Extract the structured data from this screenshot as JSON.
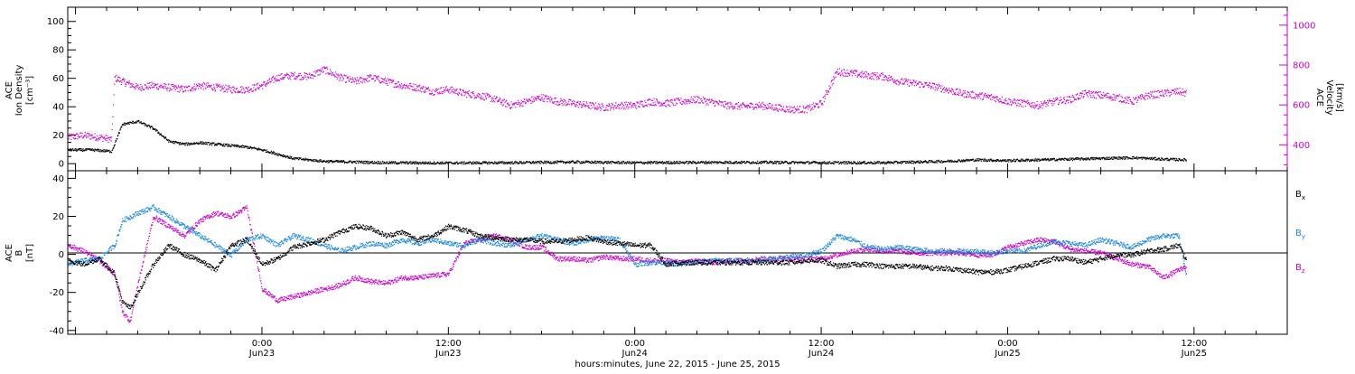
{
  "colors": {
    "black": "#000000",
    "magenta": "#cc00cc",
    "blue": "#1a88e0"
  },
  "xaxis": {
    "ticks": [
      {
        "time": "0:00",
        "date": "Jun23",
        "hours": 24
      },
      {
        "time": "12:00",
        "date": "Jun23",
        "hours": 36
      },
      {
        "time": "0:00",
        "date": "Jun24",
        "hours": 48
      },
      {
        "time": "12:00",
        "date": "Jun24",
        "hours": 60
      },
      {
        "time": "0:00",
        "date": "Jun25",
        "hours": 72
      },
      {
        "time": "12:00",
        "date": "Jun25",
        "hours": 84
      }
    ],
    "label": "hours:minutes, June 22, 2015 - June 25, 2015",
    "range_hours": [
      11.5,
      90.0
    ],
    "unit": "hours from 2015-06-22 00:00"
  },
  "panels": {
    "top": {
      "ylabel_left": [
        "ACE",
        "Ion Density",
        "[cm⁻³]"
      ],
      "ylabel_right": [
        "ACE",
        "Velocity",
        "[km/s]"
      ],
      "left_ticks": [
        "0",
        "20",
        "40",
        "60",
        "80",
        "100"
      ],
      "right_ticks": [
        "400",
        "600",
        "800",
        "1000"
      ]
    },
    "bottom": {
      "ylabel": [
        "ACE",
        "B",
        "[nT]"
      ],
      "ticks": [
        "-40",
        "-20",
        "0",
        "20",
        "40"
      ],
      "legend": [
        {
          "name": "B",
          "sub": "x",
          "color": "#000000"
        },
        {
          "name": "B",
          "sub": "y",
          "color": "#1a88e0"
        },
        {
          "name": "B",
          "sub": "z",
          "color": "#cc00cc"
        }
      ]
    }
  },
  "chart_data": [
    {
      "type": "scatter",
      "title": "",
      "xlabel": "hours:minutes, June 22, 2015 - June 25, 2015",
      "x_unit": "hours from 2015-06-22 00:00",
      "ylabel": "ACE Ion Density [cm-3]",
      "ylim": [
        -5,
        110
      ],
      "y2label": "ACE Velocity [km/s]",
      "y2lim": [
        270,
        1090
      ],
      "grid": false,
      "series": [
        {
          "name": "Ion Density",
          "axis": "left",
          "color": "#000000",
          "x": [
            11.5,
            13,
            14.3,
            15,
            16,
            17,
            18,
            19,
            20,
            21,
            22,
            23,
            24,
            25,
            26,
            28,
            32,
            36,
            40,
            44,
            48,
            52,
            56,
            60,
            64,
            66,
            68,
            70,
            72,
            74,
            76,
            78,
            80,
            82,
            83.5
          ],
          "y": [
            10,
            10,
            9,
            28,
            30,
            25,
            16,
            14,
            15,
            14,
            13,
            12,
            10,
            7,
            4,
            2,
            1,
            0.8,
            1,
            1.5,
            1,
            1.2,
            1.3,
            1,
            1,
            1.5,
            2,
            3,
            2.5,
            3,
            3.5,
            4,
            4.5,
            3.5,
            3
          ]
        },
        {
          "name": "Velocity",
          "axis": "right",
          "color": "#cc00cc",
          "x": [
            11.5,
            12.5,
            13.5,
            14.3,
            14.5,
            15,
            16,
            17,
            18,
            19,
            20,
            21,
            22,
            23,
            24,
            25,
            26,
            27,
            28,
            29,
            30,
            31,
            32,
            33,
            34,
            35,
            36,
            37,
            38,
            39,
            40,
            41,
            42,
            43,
            44,
            45,
            46,
            47,
            48,
            49,
            50,
            51,
            52,
            53,
            54,
            55,
            56,
            57,
            58,
            59,
            60,
            61,
            62,
            63,
            64,
            65,
            66,
            67,
            68,
            69,
            70,
            71,
            72,
            73,
            74,
            75,
            76,
            77,
            78,
            79,
            80,
            81,
            82,
            83,
            83.5
          ],
          "y": [
            440,
            450,
            440,
            430,
            740,
            720,
            690,
            700,
            690,
            680,
            700,
            690,
            680,
            680,
            700,
            740,
            750,
            745,
            780,
            740,
            720,
            740,
            720,
            700,
            690,
            670,
            680,
            660,
            650,
            630,
            600,
            620,
            640,
            620,
            610,
            600,
            590,
            600,
            600,
            620,
            610,
            620,
            630,
            615,
            600,
            595,
            600,
            590,
            580,
            580,
            610,
            770,
            760,
            750,
            745,
            720,
            710,
            700,
            680,
            660,
            650,
            640,
            620,
            610,
            600,
            620,
            630,
            660,
            650,
            640,
            620,
            650,
            660,
            670,
            660
          ]
        }
      ]
    },
    {
      "type": "scatter",
      "title": "",
      "xlabel": "hours:minutes, June 22, 2015 - June 25, 2015",
      "x_unit": "hours from 2015-06-22 00:00",
      "ylabel": "ACE B [nT]",
      "ylim": [
        -42,
        44
      ],
      "grid": false,
      "legend": "right",
      "series": [
        {
          "name": "Bx",
          "color": "#000000",
          "x": [
            11.5,
            12.5,
            13.5,
            14.5,
            15,
            15.5,
            16,
            17,
            18,
            19,
            20,
            21,
            22,
            23,
            24,
            25,
            26,
            27,
            28,
            29,
            30,
            31,
            32,
            33,
            34,
            35,
            36,
            37,
            38,
            39,
            40,
            41,
            42,
            43,
            44,
            45,
            46,
            47,
            48,
            49,
            50,
            51,
            52,
            53,
            54,
            55,
            56,
            57,
            58,
            59,
            60,
            61,
            62,
            63,
            64,
            65,
            66,
            67,
            68,
            69,
            70,
            71,
            72,
            73,
            74,
            75,
            76,
            77,
            78,
            79,
            80,
            81,
            82,
            83,
            83.5
          ],
          "y": [
            -3,
            -5,
            -2,
            -10,
            -25,
            -28,
            -20,
            -5,
            5,
            0,
            -3,
            -8,
            5,
            8,
            -5,
            -2,
            4,
            6,
            8,
            12,
            15,
            14,
            10,
            12,
            8,
            10,
            15,
            13,
            10,
            9,
            8,
            8,
            7,
            7,
            8,
            9,
            7,
            6,
            5,
            5,
            -5,
            -4,
            -4,
            -4,
            -4,
            -4,
            -4,
            -4,
            -4,
            -3,
            -3,
            -6,
            -5,
            -5,
            -6,
            -6,
            -6,
            -7,
            -7,
            -8,
            -9,
            -9,
            -8,
            -6,
            -4,
            -2,
            -2,
            -4,
            -2,
            0,
            0,
            2,
            3,
            5,
            -3
          ]
        },
        {
          "name": "By",
          "color": "#1a88e0",
          "x": [
            11.5,
            12.5,
            13.5,
            14.5,
            15,
            16,
            17,
            18,
            19,
            20,
            21,
            22,
            23,
            24,
            25,
            26,
            27,
            28,
            29,
            30,
            31,
            32,
            33,
            34,
            35,
            36,
            37,
            38,
            39,
            40,
            41,
            42,
            43,
            44,
            45,
            46,
            47,
            48,
            49,
            50,
            51,
            52,
            53,
            54,
            55,
            56,
            57,
            58,
            59,
            60,
            61,
            62,
            63,
            64,
            65,
            66,
            67,
            68,
            69,
            70,
            71,
            72,
            73,
            74,
            75,
            76,
            77,
            78,
            79,
            80,
            81,
            82,
            83,
            83.5
          ],
          "y": [
            -5,
            -3,
            -2,
            5,
            18,
            22,
            25,
            20,
            15,
            10,
            5,
            0,
            8,
            10,
            5,
            10,
            8,
            5,
            2,
            4,
            6,
            5,
            8,
            6,
            8,
            6,
            5,
            8,
            6,
            5,
            8,
            10,
            8,
            6,
            8,
            9,
            8,
            -5,
            -4,
            -4,
            -5,
            -4,
            -3,
            -3,
            -3,
            -3,
            -2,
            -1,
            0,
            2,
            10,
            8,
            4,
            3,
            4,
            3,
            2,
            2,
            2,
            2,
            1,
            2,
            2,
            5,
            7,
            6,
            5,
            8,
            6,
            4,
            8,
            10,
            10,
            -12
          ]
        },
        {
          "name": "Bz",
          "color": "#cc00cc",
          "x": [
            11.5,
            12.5,
            13.5,
            14.5,
            15,
            15.5,
            16,
            17,
            18,
            19,
            20,
            21,
            22,
            23,
            24,
            25,
            26,
            27,
            28,
            29,
            30,
            31,
            32,
            33,
            34,
            35,
            36,
            37,
            38,
            39,
            40,
            41,
            42,
            43,
            44,
            45,
            46,
            47,
            48,
            49,
            50,
            51,
            52,
            53,
            54,
            55,
            56,
            57,
            58,
            59,
            60,
            61,
            62,
            63,
            64,
            65,
            66,
            67,
            68,
            69,
            70,
            71,
            72,
            73,
            74,
            75,
            76,
            77,
            78,
            79,
            80,
            81,
            82,
            83,
            83.5
          ],
          "y": [
            5,
            2,
            -3,
            -10,
            -30,
            -35,
            -15,
            20,
            15,
            10,
            18,
            22,
            20,
            25,
            -18,
            -24,
            -22,
            -20,
            -18,
            -16,
            -12,
            -14,
            -15,
            -12,
            -12,
            -11,
            -10,
            6,
            8,
            10,
            8,
            4,
            4,
            -2,
            -2,
            -3,
            -1,
            -2,
            -2,
            -3,
            -3,
            -4,
            -3,
            -4,
            -3,
            -3,
            -2,
            -2,
            -2,
            -2,
            -2,
            0,
            2,
            3,
            2,
            2,
            1,
            1,
            1,
            1,
            0,
            0,
            4,
            6,
            8,
            7,
            3,
            2,
            1,
            -2,
            -5,
            -6,
            -12,
            -8,
            -6
          ]
        }
      ]
    }
  ]
}
